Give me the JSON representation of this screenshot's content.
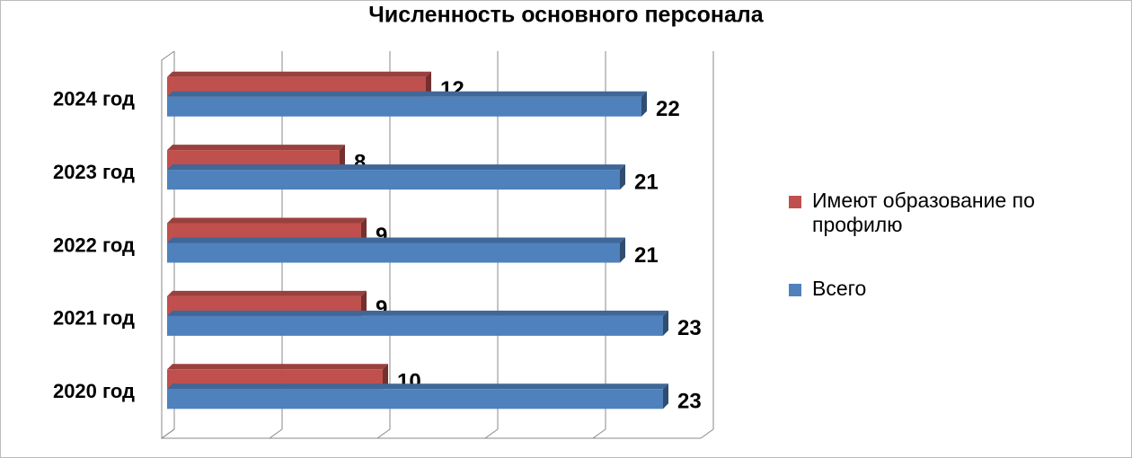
{
  "chart_data": {
    "type": "bar3d_horizontal",
    "title": "Численность основного персонала",
    "categories": [
      "2024 год",
      "2023 год",
      "2022 год",
      "2021 год",
      "2020 год"
    ],
    "series": [
      {
        "name": "Имеют образование по профилю",
        "color": "#c0504d",
        "values": [
          12,
          8,
          9,
          9,
          10
        ]
      },
      {
        "name": "Всего",
        "color": "#4f81bd",
        "values": [
          22,
          21,
          21,
          23,
          23
        ]
      }
    ],
    "xlim": [
      0,
      25
    ],
    "xticks": [
      0,
      5,
      10,
      15,
      20,
      25
    ],
    "grid": true,
    "legend": "right"
  }
}
